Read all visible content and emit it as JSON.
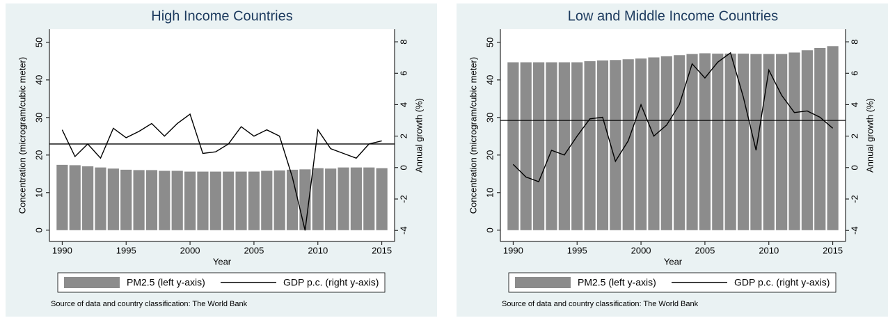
{
  "chart_data": [
    {
      "type": "combo",
      "title": "High Income Countries",
      "xlabel": "Year",
      "ylabel": "Concentration (microgram/cubic meter)",
      "y2label": "Annual growth (%)",
      "x": [
        1990,
        1991,
        1992,
        1993,
        1994,
        1995,
        1996,
        1997,
        1998,
        1999,
        2000,
        2001,
        2002,
        2003,
        2004,
        2005,
        2006,
        2007,
        2008,
        2009,
        2010,
        2011,
        2012,
        2013,
        2014,
        2015
      ],
      "series": [
        {
          "name": "PM2.5 (left y-axis)",
          "type": "bar",
          "color": "#8c8c8c",
          "values": [
            17.4,
            17.3,
            17.0,
            16.7,
            16.4,
            16.1,
            16.0,
            16.0,
            15.8,
            15.8,
            15.6,
            15.6,
            15.6,
            15.6,
            15.6,
            15.6,
            15.8,
            15.9,
            16.1,
            16.2,
            16.5,
            16.4,
            16.7,
            16.7,
            16.7,
            16.5
          ]
        },
        {
          "name": "GDP p.c. (right y-axis)",
          "type": "line",
          "color": "#000000",
          "axis": "y2",
          "values": [
            2.4,
            0.7,
            1.5,
            0.6,
            2.5,
            1.9,
            2.3,
            2.8,
            2.0,
            2.8,
            3.4,
            0.9,
            1.0,
            1.5,
            2.6,
            2.0,
            2.4,
            2.0,
            -0.6,
            -4.0,
            2.4,
            1.2,
            0.9,
            0.6,
            1.5,
            1.7
          ]
        }
      ],
      "reference_line": 1.5,
      "xlim": [
        1989,
        2016
      ],
      "xticks": [
        1990,
        1995,
        2000,
        2005,
        2010,
        2015
      ],
      "ylim": [
        -3,
        53.5
      ],
      "yticks": [
        0,
        10,
        20,
        30,
        40,
        50
      ],
      "y2lim": [
        -4.7,
        8.8
      ],
      "y2ticks": [
        -4,
        -2,
        0,
        2,
        4,
        6,
        8
      ],
      "note": "Source of data and country classification: The World Bank"
    },
    {
      "type": "combo",
      "title": "Low and Middle Income Countries",
      "xlabel": "Year",
      "ylabel": "Concentration (microgram/cubic meter)",
      "y2label": "Annual growth (%)",
      "x": [
        1990,
        1991,
        1992,
        1993,
        1994,
        1995,
        1996,
        1997,
        1998,
        1999,
        2000,
        2001,
        2002,
        2003,
        2004,
        2005,
        2006,
        2007,
        2008,
        2009,
        2010,
        2011,
        2012,
        2013,
        2014,
        2015
      ],
      "series": [
        {
          "name": "PM2.5 (left y-axis)",
          "type": "bar",
          "color": "#8c8c8c",
          "values": [
            44.7,
            44.7,
            44.7,
            44.7,
            44.7,
            44.7,
            45.0,
            45.2,
            45.3,
            45.5,
            45.7,
            46.0,
            46.3,
            46.6,
            46.9,
            47.1,
            47.0,
            47.0,
            47.0,
            46.9,
            46.9,
            46.9,
            47.3,
            47.9,
            48.5,
            49.0
          ]
        },
        {
          "name": "GDP p.c. (right y-axis)",
          "type": "line",
          "color": "#000000",
          "axis": "y2",
          "values": [
            0.2,
            -0.6,
            -0.9,
            1.1,
            0.8,
            2.0,
            3.1,
            3.2,
            0.4,
            1.7,
            4.0,
            2.0,
            2.7,
            4.0,
            6.6,
            5.7,
            6.7,
            7.3,
            4.5,
            1.1,
            6.2,
            4.6,
            3.5,
            3.6,
            3.2,
            2.5
          ]
        }
      ],
      "reference_line": 3.0,
      "xlim": [
        1989,
        2016
      ],
      "xticks": [
        1990,
        1995,
        2000,
        2005,
        2010,
        2015
      ],
      "ylim": [
        -3,
        53.5
      ],
      "yticks": [
        0,
        10,
        20,
        30,
        40,
        50
      ],
      "y2lim": [
        -4.7,
        8.8
      ],
      "y2ticks": [
        -4,
        -2,
        0,
        2,
        4,
        6,
        8
      ],
      "note": "Source of data and country classification: The World Bank"
    }
  ]
}
